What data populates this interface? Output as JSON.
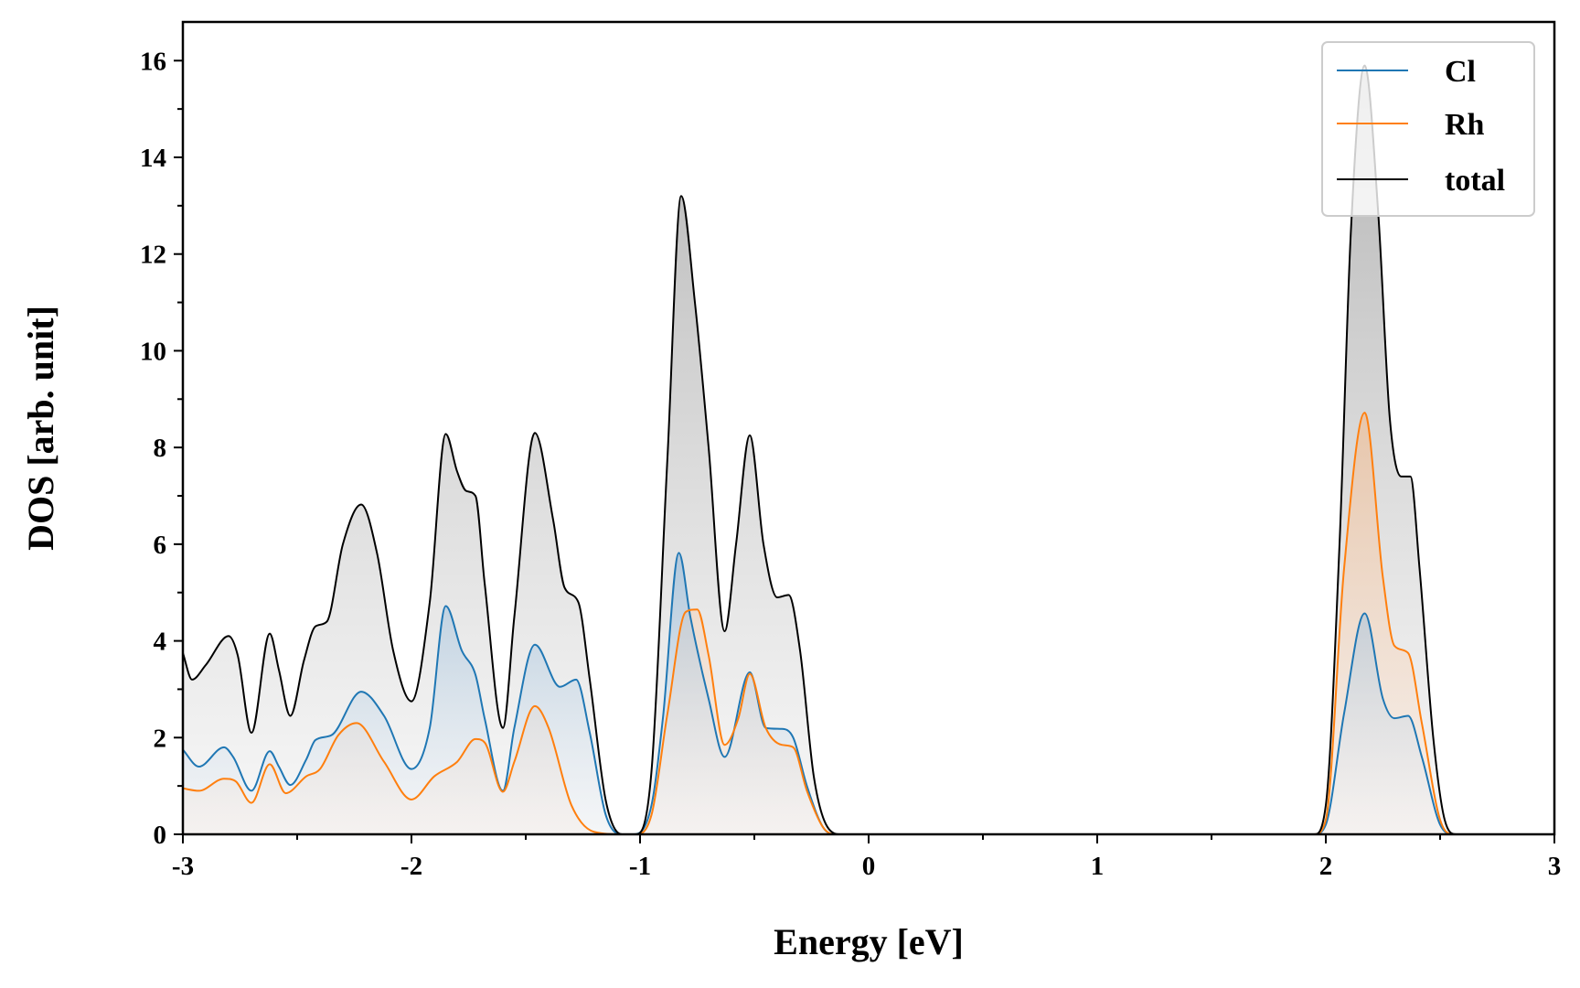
{
  "chart_data": {
    "type": "line",
    "title": "",
    "xlabel": "Energy [eV]",
    "ylabel": "DOS [arb. unit]",
    "xlim": [
      -3,
      3
    ],
    "ylim": [
      0,
      16.8
    ],
    "x_ticks": [
      "-3",
      "-2",
      "-1",
      "0",
      "1",
      "2",
      "3"
    ],
    "y_ticks": [
      "0",
      "2",
      "4",
      "6",
      "8",
      "10",
      "12",
      "14",
      "16"
    ],
    "legend_position": "top-right",
    "filled_areas": true,
    "series": [
      {
        "name": "Cl",
        "color": "#1f77b4",
        "fill_color": "#aac4dc",
        "points": [
          [
            -3.0,
            1.75
          ],
          [
            -2.93,
            1.4
          ],
          [
            -2.82,
            1.8
          ],
          [
            -2.78,
            1.6
          ],
          [
            -2.7,
            0.9
          ],
          [
            -2.62,
            1.72
          ],
          [
            -2.58,
            1.4
          ],
          [
            -2.53,
            1.02
          ],
          [
            -2.46,
            1.55
          ],
          [
            -2.42,
            1.95
          ],
          [
            -2.35,
            2.05
          ],
          [
            -2.22,
            2.95
          ],
          [
            -2.12,
            2.45
          ],
          [
            -2.0,
            1.35
          ],
          [
            -1.92,
            2.2
          ],
          [
            -1.85,
            4.72
          ],
          [
            -1.78,
            3.8
          ],
          [
            -1.72,
            3.3
          ],
          [
            -1.68,
            2.4
          ],
          [
            -1.6,
            0.9
          ],
          [
            -1.55,
            2.2
          ],
          [
            -1.46,
            3.92
          ],
          [
            -1.35,
            3.05
          ],
          [
            -1.28,
            3.2
          ],
          [
            -1.22,
            2.1
          ],
          [
            -1.15,
            0.4
          ],
          [
            -1.08,
            0.0
          ],
          [
            -1.03,
            0.0
          ],
          [
            -0.95,
            0.6
          ],
          [
            -0.9,
            2.4
          ],
          [
            -0.83,
            5.82
          ],
          [
            -0.78,
            4.5
          ],
          [
            -0.7,
            2.8
          ],
          [
            -0.63,
            1.6
          ],
          [
            -0.52,
            3.35
          ],
          [
            -0.45,
            2.2
          ],
          [
            -0.38,
            2.18
          ],
          [
            -0.33,
            2.0
          ],
          [
            -0.27,
            1.0
          ],
          [
            -0.2,
            0.15
          ],
          [
            -0.15,
            0.0
          ],
          [
            1.95,
            0.0
          ],
          [
            2.0,
            0.2
          ],
          [
            2.08,
            2.5
          ],
          [
            2.17,
            4.57
          ],
          [
            2.25,
            2.8
          ],
          [
            2.3,
            2.4
          ],
          [
            2.36,
            2.45
          ],
          [
            2.42,
            1.6
          ],
          [
            2.5,
            0.2
          ],
          [
            2.56,
            0.0
          ],
          [
            3.0,
            0.0
          ]
        ]
      },
      {
        "name": "Rh",
        "color": "#ff7f0e",
        "fill_color": "#f1c3a0",
        "points": [
          [
            -3.0,
            0.95
          ],
          [
            -2.93,
            0.9
          ],
          [
            -2.82,
            1.15
          ],
          [
            -2.77,
            1.1
          ],
          [
            -2.7,
            0.65
          ],
          [
            -2.62,
            1.45
          ],
          [
            -2.55,
            0.85
          ],
          [
            -2.46,
            1.2
          ],
          [
            -2.4,
            1.35
          ],
          [
            -2.32,
            2.05
          ],
          [
            -2.24,
            2.3
          ],
          [
            -2.12,
            1.5
          ],
          [
            -2.0,
            0.72
          ],
          [
            -1.9,
            1.2
          ],
          [
            -1.8,
            1.5
          ],
          [
            -1.72,
            1.97
          ],
          [
            -1.68,
            1.9
          ],
          [
            -1.6,
            0.88
          ],
          [
            -1.55,
            1.5
          ],
          [
            -1.46,
            2.65
          ],
          [
            -1.4,
            2.2
          ],
          [
            -1.3,
            0.6
          ],
          [
            -1.2,
            0.05
          ],
          [
            -1.08,
            0.0
          ],
          [
            -1.02,
            0.0
          ],
          [
            -0.95,
            0.4
          ],
          [
            -0.88,
            2.5
          ],
          [
            -0.8,
            4.6
          ],
          [
            -0.75,
            4.65
          ],
          [
            -0.7,
            3.7
          ],
          [
            -0.63,
            1.85
          ],
          [
            -0.57,
            2.4
          ],
          [
            -0.52,
            3.32
          ],
          [
            -0.45,
            2.2
          ],
          [
            -0.38,
            1.85
          ],
          [
            -0.33,
            1.8
          ],
          [
            -0.27,
            0.9
          ],
          [
            -0.2,
            0.15
          ],
          [
            -0.15,
            0.0
          ],
          [
            1.95,
            0.0
          ],
          [
            2.0,
            0.3
          ],
          [
            2.08,
            5.5
          ],
          [
            2.17,
            8.72
          ],
          [
            2.25,
            5.3
          ],
          [
            2.3,
            3.9
          ],
          [
            2.36,
            3.75
          ],
          [
            2.42,
            2.3
          ],
          [
            2.5,
            0.3
          ],
          [
            2.56,
            0.0
          ],
          [
            3.0,
            0.0
          ]
        ]
      },
      {
        "name": "total",
        "color": "#000000",
        "fill_color": "#b7b7b7",
        "points": [
          [
            -3.0,
            3.75
          ],
          [
            -2.96,
            3.2
          ],
          [
            -2.9,
            3.5
          ],
          [
            -2.8,
            4.1
          ],
          [
            -2.76,
            3.7
          ],
          [
            -2.7,
            2.1
          ],
          [
            -2.62,
            4.15
          ],
          [
            -2.58,
            3.4
          ],
          [
            -2.53,
            2.45
          ],
          [
            -2.47,
            3.6
          ],
          [
            -2.42,
            4.3
          ],
          [
            -2.37,
            4.4
          ],
          [
            -2.3,
            6.0
          ],
          [
            -2.22,
            6.82
          ],
          [
            -2.15,
            5.8
          ],
          [
            -2.08,
            3.8
          ],
          [
            -2.0,
            2.75
          ],
          [
            -1.92,
            4.8
          ],
          [
            -1.85,
            8.28
          ],
          [
            -1.8,
            7.5
          ],
          [
            -1.76,
            7.1
          ],
          [
            -1.72,
            7.0
          ],
          [
            -1.68,
            5.2
          ],
          [
            -1.6,
            2.2
          ],
          [
            -1.55,
            4.5
          ],
          [
            -1.46,
            8.3
          ],
          [
            -1.38,
            6.5
          ],
          [
            -1.33,
            5.1
          ],
          [
            -1.27,
            4.8
          ],
          [
            -1.22,
            3.2
          ],
          [
            -1.15,
            0.7
          ],
          [
            -1.08,
            0.0
          ],
          [
            -1.02,
            0.0
          ],
          [
            -0.95,
            1.3
          ],
          [
            -0.88,
            7.8
          ],
          [
            -0.82,
            13.2
          ],
          [
            -0.76,
            11.0
          ],
          [
            -0.7,
            8.0
          ],
          [
            -0.63,
            4.2
          ],
          [
            -0.58,
            6.0
          ],
          [
            -0.52,
            8.25
          ],
          [
            -0.46,
            6.0
          ],
          [
            -0.4,
            4.9
          ],
          [
            -0.35,
            4.95
          ],
          [
            -0.3,
            3.8
          ],
          [
            -0.24,
            1.2
          ],
          [
            -0.18,
            0.15
          ],
          [
            -0.12,
            0.0
          ],
          [
            1.95,
            0.0
          ],
          [
            2.0,
            0.6
          ],
          [
            2.06,
            6.0
          ],
          [
            2.11,
            12.5
          ],
          [
            2.17,
            15.9
          ],
          [
            2.23,
            12.8
          ],
          [
            2.28,
            8.6
          ],
          [
            2.33,
            7.4
          ],
          [
            2.37,
            7.4
          ],
          [
            2.41,
            5.5
          ],
          [
            2.47,
            2.0
          ],
          [
            2.52,
            0.3
          ],
          [
            2.57,
            0.0
          ],
          [
            3.0,
            0.0
          ]
        ]
      }
    ]
  }
}
